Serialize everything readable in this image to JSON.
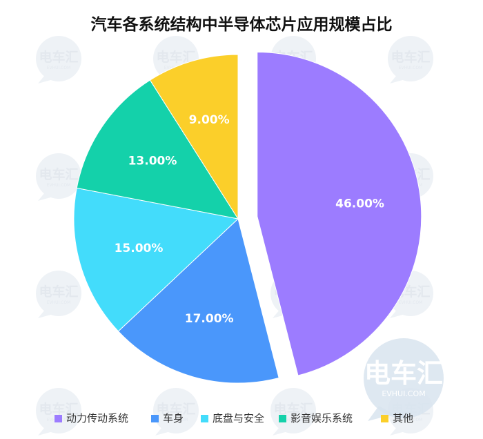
{
  "chart_data": {
    "type": "pie",
    "title": "汽车各系统结构中半导体芯片应用规模占比",
    "slices": [
      {
        "name": "动力传动系统",
        "value": 46.0,
        "label": "46.00%",
        "color": "#9c7cff",
        "exploded": true
      },
      {
        "name": "车身",
        "value": 17.0,
        "label": "17.00%",
        "color": "#4a97fb"
      },
      {
        "name": "底盘与安全",
        "value": 15.0,
        "label": "15.00%",
        "color": "#43dcfb"
      },
      {
        "name": "影音娱乐系统",
        "value": 13.0,
        "label": "13.00%",
        "color": "#14d1aa"
      },
      {
        "name": "其他",
        "value": 9.0,
        "label": "9.00%",
        "color": "#fbcf2a"
      }
    ],
    "legend_position": "bottom"
  },
  "watermark": {
    "main": "电车汇",
    "sub": "EVHUI.COM"
  }
}
